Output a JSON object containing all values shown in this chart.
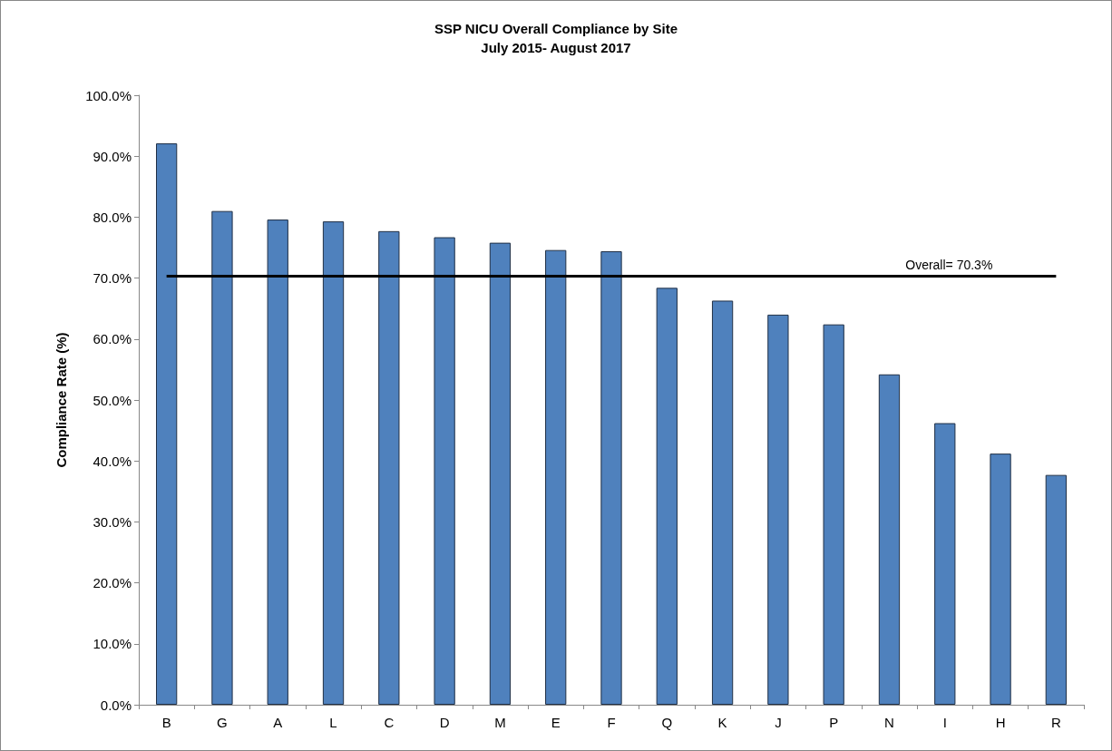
{
  "chart_data": {
    "type": "bar",
    "title": "SSP NICU Overall Compliance by Site",
    "subtitle": "July 2015- August 2017",
    "ylabel": "Compliance Rate (%)",
    "categories": [
      "B",
      "G",
      "A",
      "L",
      "C",
      "D",
      "M",
      "E",
      "F",
      "Q",
      "K",
      "J",
      "P",
      "N",
      "I",
      "H",
      "R"
    ],
    "series": [
      {
        "color": "#4f81bd",
        "values": [
          92.1,
          81.0,
          79.6,
          79.3,
          77.7,
          76.7,
          75.8,
          74.6,
          74.4,
          68.4,
          66.3,
          64.0,
          62.4,
          54.2,
          46.2,
          41.2,
          37.7
        ]
      }
    ],
    "ylim": [
      0,
      100
    ],
    "yticks": [
      {
        "value": 0,
        "label": "0.0%"
      },
      {
        "value": 10,
        "label": "10.0%"
      },
      {
        "value": 20,
        "label": "20.0%"
      },
      {
        "value": 30,
        "label": "30.0%"
      },
      {
        "value": 40,
        "label": "40.0%"
      },
      {
        "value": 50,
        "label": "50.0%"
      },
      {
        "value": 60,
        "label": "60.0%"
      },
      {
        "value": 70,
        "label": "70.0%"
      },
      {
        "value": 80,
        "label": "80.0%"
      },
      {
        "value": 90,
        "label": "90.0%"
      },
      {
        "value": 100,
        "label": "100.0%"
      }
    ],
    "ref_lines": [
      {
        "axis": "y",
        "value": 70.3,
        "label": "Overall= 70.3%",
        "color": "#000000"
      }
    ],
    "data_labels": false
  }
}
